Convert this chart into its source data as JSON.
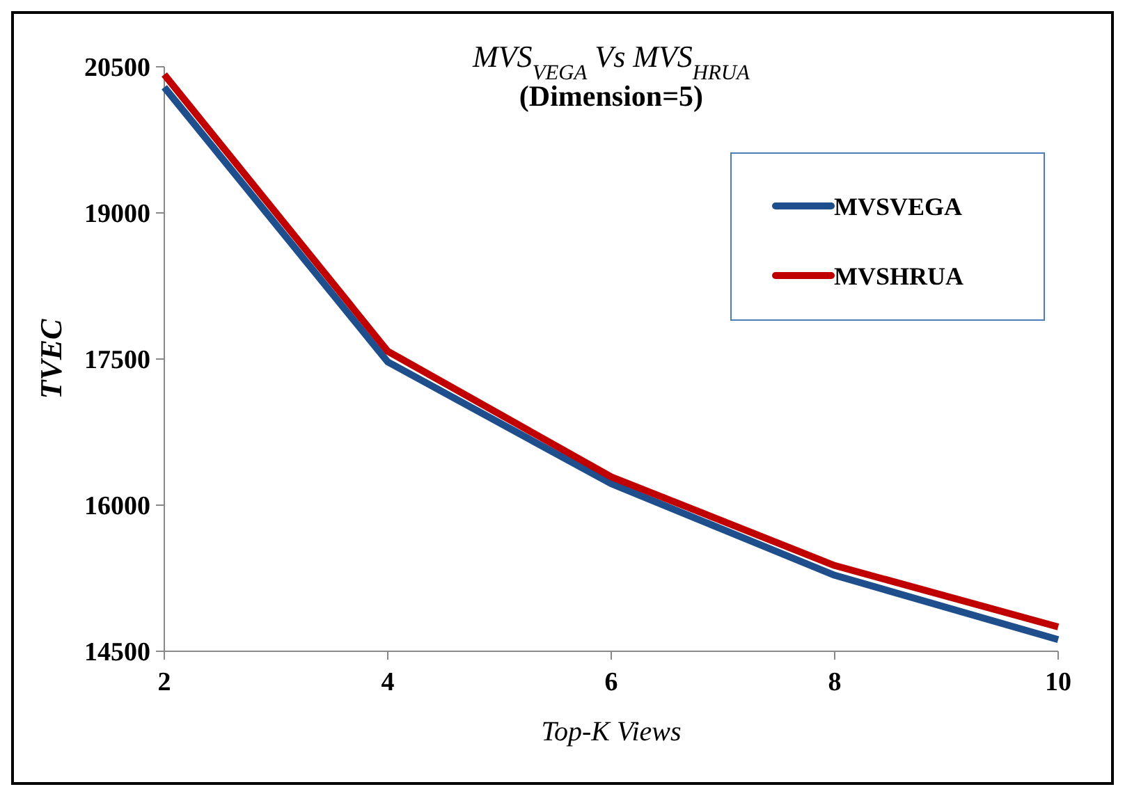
{
  "chart_data": {
    "type": "line",
    "title": "MVS$_{VEGA}$ Vs MVS$_{HRUA}$",
    "subtitle": "(Dimension=5)",
    "xlabel": "Top-K Views",
    "ylabel": "TVEC",
    "x": [
      2,
      4,
      6,
      8,
      10
    ],
    "xlim": [
      2,
      10
    ],
    "xticks": [
      2,
      4,
      6,
      8,
      10
    ],
    "ylim": [
      14500,
      20500
    ],
    "yticks": [
      14500,
      16000,
      17500,
      19000,
      20500
    ],
    "grid": false,
    "legend": "top right",
    "marker": "none",
    "line_style": "solid",
    "series": [
      {
        "name": "MVSVEGA",
        "color": "#1f4e8c",
        "values": [
          20290,
          17470,
          16220,
          15280,
          14620
        ]
      },
      {
        "name": "MVSHRUA",
        "color": "#c00000",
        "values": [
          20420,
          17580,
          16290,
          15380,
          14750
        ]
      }
    ]
  }
}
